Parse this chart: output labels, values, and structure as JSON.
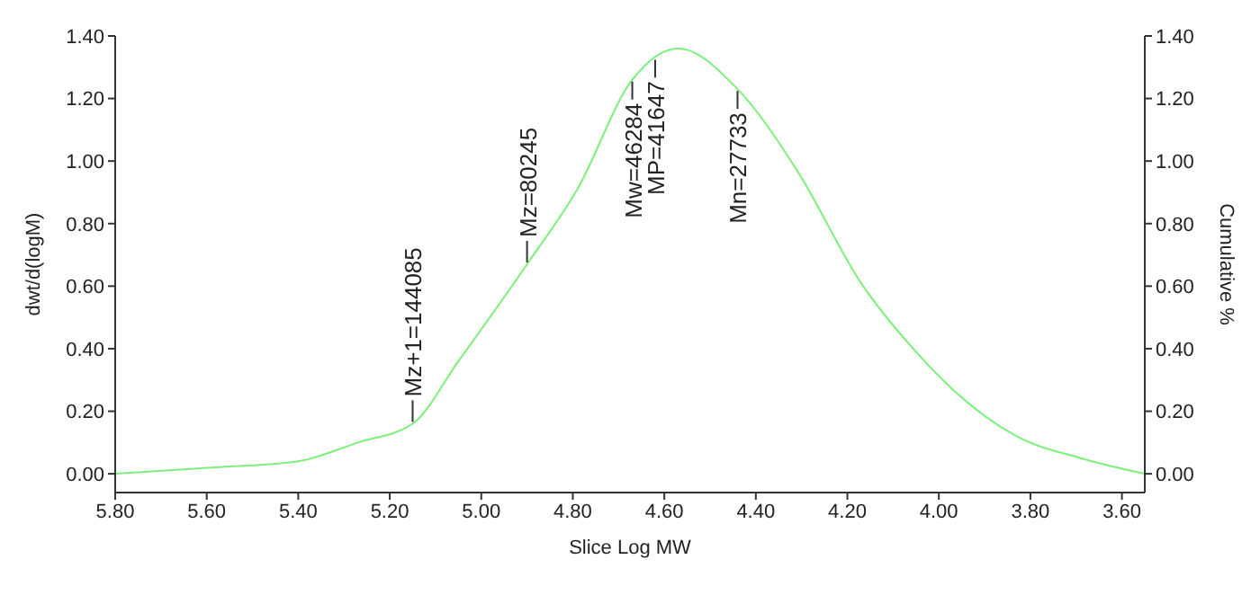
{
  "chart_data": {
    "type": "line",
    "xlabel": "Slice Log MW",
    "ylabel": "dwt/d(logM)",
    "y2label": "Cumulative %",
    "x": [
      5.8,
      5.59,
      5.4,
      5.27,
      5.15,
      5.05,
      4.9,
      4.79,
      4.67,
      4.57,
      4.44,
      4.31,
      4.17,
      4.05,
      3.97,
      3.83,
      3.69,
      3.55
    ],
    "series": [
      {
        "color": "#7cf07c",
        "values": [
          0,
          0.02,
          0.04,
          0.1,
          0.16,
          0.36,
          0.67,
          0.91,
          1.26,
          1.36,
          1.23,
          0.97,
          0.61,
          0.39,
          0.27,
          0.12,
          0.05,
          0
        ]
      }
    ],
    "xlim": [
      5.8,
      3.55
    ],
    "xticks": [
      {
        "value": 5.8,
        "label": "5.80"
      },
      {
        "value": 5.6,
        "label": "5.60"
      },
      {
        "value": 5.4,
        "label": "5.40"
      },
      {
        "value": 5.2,
        "label": "5.20"
      },
      {
        "value": 5,
        "label": "5.00"
      },
      {
        "value": 4.8,
        "label": "4.80"
      },
      {
        "value": 4.6,
        "label": "4.60"
      },
      {
        "value": 4.4,
        "label": "4.40"
      },
      {
        "value": 4.2,
        "label": "4.20"
      },
      {
        "value": 4,
        "label": "4.00"
      },
      {
        "value": 3.8,
        "label": "3.80"
      },
      {
        "value": 3.6,
        "label": "3.60"
      }
    ],
    "ylim": [
      -0.06,
      1.4
    ],
    "yticks": [
      {
        "value": 0,
        "label": "0.00"
      },
      {
        "value": 0.2,
        "label": "0.20"
      },
      {
        "value": 0.4,
        "label": "0.40"
      },
      {
        "value": 0.6,
        "label": "0.60"
      },
      {
        "value": 0.8,
        "label": "0.80"
      },
      {
        "value": 1,
        "label": "1.00"
      },
      {
        "value": 1.2,
        "label": "1.20"
      },
      {
        "value": 1.4,
        "label": "1.40"
      }
    ],
    "y2lim": [
      -0.06,
      1.4
    ],
    "y2ticks": [
      {
        "value": 0,
        "label": "0.00"
      },
      {
        "value": 0.2,
        "label": "0.20"
      },
      {
        "value": 0.4,
        "label": "0.40"
      },
      {
        "value": 0.6,
        "label": "0.60"
      },
      {
        "value": 0.8,
        "label": "0.80"
      },
      {
        "value": 1,
        "label": "1.00"
      },
      {
        "value": 1.2,
        "label": "1.20"
      },
      {
        "value": 1.4,
        "label": "1.40"
      }
    ],
    "grid": false,
    "legend": false,
    "marker": "none",
    "line_style": "solid",
    "annotations": [
      {
        "text": "Mz+1=144085",
        "x": 5.15,
        "y": 0.16
      },
      {
        "text": "Mz=80245",
        "x": 4.9,
        "y": 0.67
      },
      {
        "text": "Mw=46284",
        "x": 4.67,
        "y": 1.26
      },
      {
        "text": "MP=41647",
        "x": 4.62,
        "y": 1.33
      },
      {
        "text": "Mn=27733",
        "x": 4.44,
        "y": 1.23
      }
    ]
  }
}
